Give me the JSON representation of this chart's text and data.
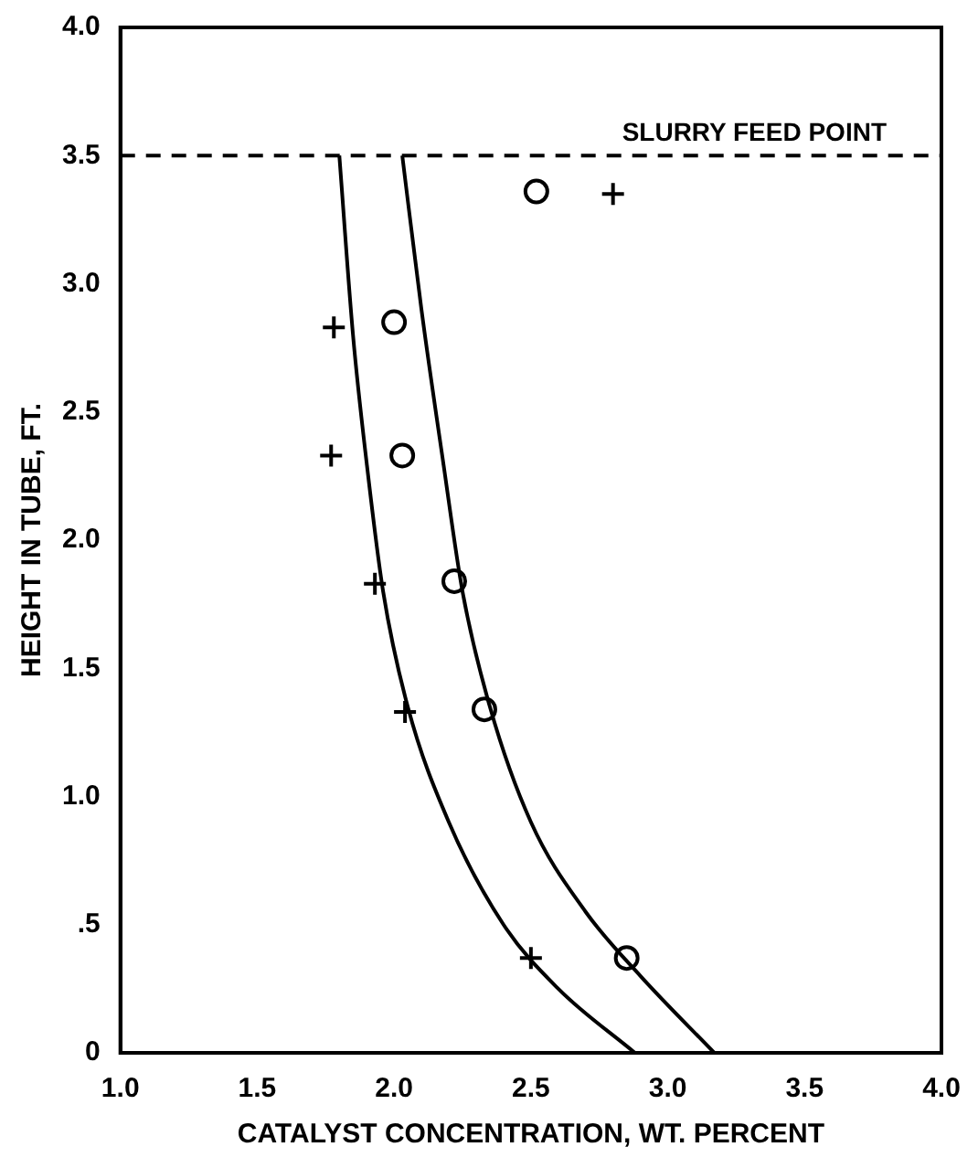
{
  "chart_data": {
    "type": "scatter",
    "xlabel": "CATALYST CONCENTRATION, WT. PERCENT",
    "ylabel": "HEIGHT IN TUBE, FT.",
    "xlim": [
      1.0,
      4.0
    ],
    "ylim": [
      0,
      4.0
    ],
    "xticks": [
      {
        "value": 1,
        "label": "1.0"
      },
      1.5,
      {
        "value": 2,
        "label": "2.0"
      },
      2.5,
      {
        "value": 3,
        "label": "3.0"
      },
      3.5,
      {
        "value": 4,
        "label": "4.0"
      }
    ],
    "yticks": [
      0,
      {
        "value": 0.5,
        "label": ".5"
      },
      {
        "value": 1,
        "label": "1.0"
      },
      1.5,
      {
        "value": 2,
        "label": "2.0"
      },
      2.5,
      {
        "value": 3,
        "label": "3.0"
      },
      3.5,
      {
        "value": 4,
        "label": "4.0"
      }
    ],
    "grid": false,
    "legend": false,
    "ref_lines": [
      {
        "axis": "y",
        "value": 3.5,
        "label": "SLURRY FEED POINT",
        "line_style": "dashed",
        "color": "#000000"
      }
    ],
    "series": [
      {
        "marker": "cross",
        "color": "#000000",
        "x": [
          1.78,
          1.77,
          1.93,
          2.04,
          2.5,
          2.8
        ],
        "values": [
          2.83,
          2.33,
          1.83,
          1.33,
          0.37,
          3.35
        ]
      },
      {
        "marker": "circle",
        "color": "#000000",
        "x": [
          2.0,
          2.03,
          2.22,
          2.33,
          2.85,
          2.52
        ],
        "values": [
          2.85,
          2.33,
          1.84,
          1.34,
          0.37,
          3.36
        ]
      },
      {
        "type": "line",
        "marker": "none",
        "line_style": "solid",
        "color": "#000000",
        "x": [
          1.8,
          1.85,
          1.9,
          1.96,
          2.05,
          2.2,
          2.4,
          2.6,
          2.88
        ],
        "values": [
          3.5,
          2.8,
          2.3,
          1.8,
          1.35,
          0.9,
          0.5,
          0.25,
          0
        ]
      },
      {
        "type": "line",
        "marker": "none",
        "line_style": "solid",
        "color": "#000000",
        "x": [
          2.03,
          2.1,
          2.18,
          2.25,
          2.35,
          2.5,
          2.7,
          2.9,
          3.17
        ],
        "values": [
          3.5,
          2.9,
          2.3,
          1.8,
          1.35,
          0.9,
          0.55,
          0.3,
          0
        ]
      }
    ]
  }
}
